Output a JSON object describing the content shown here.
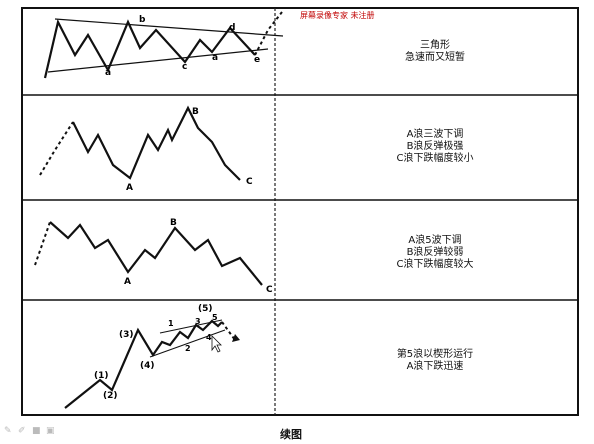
{
  "watermark": "屏幕录像专家 未注册",
  "caption": "续图",
  "panels": [
    {
      "lines": [
        "三角形",
        "急速而又短暂"
      ],
      "labels": {
        "a1": "a",
        "b": "b",
        "c": "c",
        "d": "d",
        "e": "e",
        "a2": "a"
      }
    },
    {
      "lines": [
        "A浪三波下调",
        "B浪反弹极强",
        "C浪下跌幅度较小"
      ],
      "labels": {
        "A": "A",
        "B": "B",
        "C": "C"
      }
    },
    {
      "lines": [
        "A浪5波下调",
        "B浪反弹较弱",
        "C浪下跌幅度较大"
      ],
      "labels": {
        "A": "A",
        "B": "B",
        "C": "C"
      }
    },
    {
      "lines": [
        "第5浪以楔形运行",
        "A浪下跌迅速"
      ],
      "labels": {
        "w1": "(1)",
        "w2": "(2)",
        "w3": "(3)",
        "w4": "(4)",
        "w5": "(5)",
        "s1": "1",
        "s2": "2",
        "s3": "3",
        "s4": "4",
        "s5": "5"
      }
    }
  ]
}
